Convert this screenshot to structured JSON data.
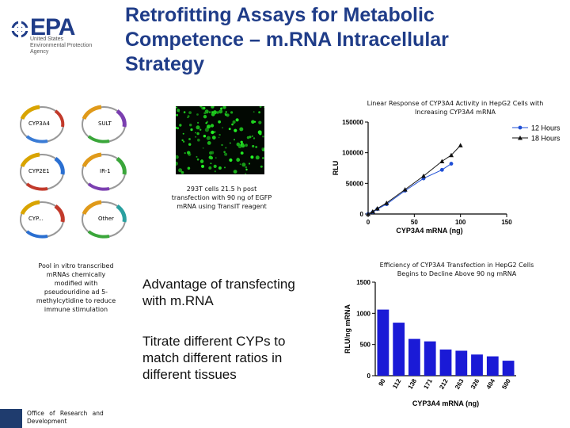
{
  "logo": {
    "wordmark": "EPA",
    "line1": "United States",
    "line2": "Environmental Protection",
    "line3": "Agency"
  },
  "title": {
    "line1": "Retrofitting Assays for Metabolic",
    "line2": "Competence – m.RNA Intracellular",
    "line3": "Strategy"
  },
  "plasmids": [
    {
      "label": "CYP3A4",
      "color": "#d9a400"
    },
    {
      "label": "SULT",
      "color": "#7b3fb0"
    },
    {
      "label": "CYP2E1",
      "color": "#2a6fd1"
    },
    {
      "label": "IR-1",
      "color": "#3aa63a"
    },
    {
      "label": "CYP...",
      "color": "#c23a2b"
    },
    {
      "label": "Other",
      "color": "#2aa0a0"
    }
  ],
  "micrograph_caption": {
    "line1": "293T cells 21.5 h post",
    "line2": "transfection with 90 ng of EGFP",
    "line3": "mRNA using TransIT reagent"
  },
  "pool_caption": {
    "line1": "Pool in vitro transcribed",
    "line2": "mRNAs chemically",
    "line3": "modified with",
    "line4": "pseudouridine ad 5-",
    "line5": "methylcytidine to reduce",
    "line6": "immune stimulation"
  },
  "bullets": {
    "b1_line1": "Advantage of transfecting",
    "b1_line2": "with m.RNA",
    "b2_line1": "Titrate different CYPs to",
    "b2_line2": "match different ratios in",
    "b2_line3": "different tissues"
  },
  "footer": {
    "line1": "Office of Research and",
    "line2": "Development"
  },
  "chart_data": [
    {
      "type": "line",
      "title_line1": "Linear Response of CYP3A4 Activity in HepG2 Cells with",
      "title_line2": "Increasing CYP3A4 mRNA",
      "xlabel": "CYP3A4 mRNA (ng)",
      "ylabel": "RLU",
      "xlim": [
        0,
        150
      ],
      "ylim": [
        0,
        150000
      ],
      "xticks": [
        "0",
        "50",
        "100",
        "150"
      ],
      "yticks": [
        "0",
        "50000",
        "100000",
        "150000"
      ],
      "legend_position": "top-right",
      "series": [
        {
          "name": "12 Hours",
          "color": "#1f4fd6",
          "marker": "circle",
          "x": [
            0,
            5,
            10,
            20,
            40,
            60,
            80,
            90
          ],
          "y": [
            0,
            3000,
            8000,
            16000,
            38000,
            58000,
            72000,
            82000
          ]
        },
        {
          "name": "18 Hours",
          "color": "#111111",
          "marker": "triangle",
          "x": [
            0,
            5,
            10,
            20,
            40,
            60,
            80,
            90,
            100
          ],
          "y": [
            0,
            4000,
            9000,
            18000,
            40000,
            62000,
            86000,
            96000,
            112000
          ]
        }
      ]
    },
    {
      "type": "bar",
      "title_line1": "Efficiency of CYP3A4 Transfection in HepG2 Cells",
      "title_line2": "Begins to Decline Above 90 ng mRNA",
      "xlabel": "CYP3A4 mRNA (ng)",
      "ylabel": "RLU/ng mRNA",
      "ylim": [
        0,
        1500
      ],
      "yticks": [
        "0",
        "500",
        "1000",
        "1500"
      ],
      "bar_color": "#1a1ad6",
      "categories": [
        "90",
        "112",
        "138",
        "171",
        "212",
        "263",
        "326",
        "404",
        "500"
      ],
      "values": [
        1060,
        850,
        590,
        550,
        420,
        400,
        340,
        310,
        240
      ]
    }
  ]
}
